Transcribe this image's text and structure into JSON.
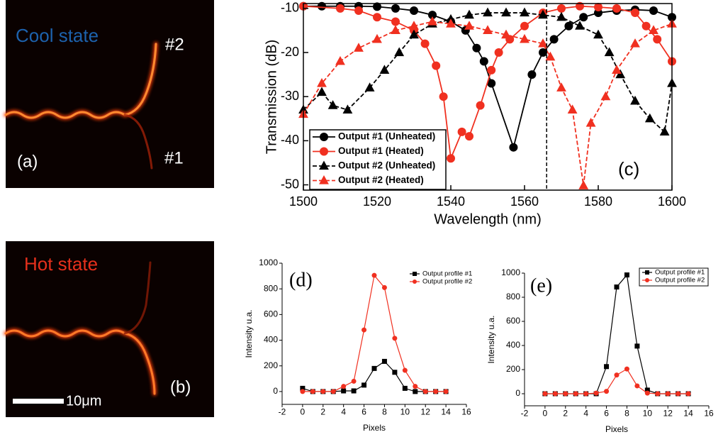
{
  "images": [
    {
      "state": "Cool state",
      "label": "(a)",
      "ports": [
        "#2",
        "#1"
      ]
    },
    {
      "state": "Hot state",
      "label": "(b)",
      "scale_bar": "10μm"
    }
  ],
  "chart_data": [
    {
      "type": "line",
      "annotation": "(c)",
      "x_label": "Wavelength (nm)",
      "y_label": "Transmission (dB)",
      "xlim": [
        1500,
        1600
      ],
      "xticks": [
        1500,
        1520,
        1540,
        1560,
        1580,
        1600
      ],
      "ylim": [
        -51.2,
        -8.9
      ],
      "yticks": [
        -50,
        -40,
        -30,
        -20,
        -10
      ],
      "vline": 1566,
      "series": [
        {
          "name": "Output #1 (Unheated)",
          "color": "#000000",
          "marker": "circle",
          "line_style": "solid",
          "x": [
            1500,
            1505,
            1510,
            1515,
            1520,
            1525,
            1530,
            1535,
            1540,
            1544,
            1547,
            1549,
            1551,
            1557,
            1562,
            1565,
            1568,
            1572,
            1576,
            1580,
            1585,
            1590,
            1595,
            1600
          ],
          "values": [
            -9.5,
            -9.5,
            -9.5,
            -9.5,
            -9.6,
            -10,
            -10.5,
            -11.5,
            -13,
            -15,
            -19,
            -22,
            -27,
            -41.5,
            -25,
            -20,
            -17,
            -14,
            -12,
            -11,
            -10.5,
            -10.3,
            -10.5,
            -12
          ]
        },
        {
          "name": "Output #1 (Heated)",
          "color": "#f03020",
          "marker": "circle",
          "line_style": "solid",
          "x": [
            1500,
            1510,
            1515,
            1520,
            1525,
            1530,
            1533,
            1536,
            1538,
            1540,
            1543,
            1545,
            1548,
            1551,
            1553,
            1556,
            1560,
            1565,
            1570,
            1575,
            1580,
            1585,
            1590,
            1593,
            1596,
            1600
          ],
          "values": [
            -9.5,
            -10,
            -10.5,
            -12,
            -13,
            -15,
            -18,
            -23,
            -30,
            -44,
            -38,
            -39,
            -32,
            -24,
            -20,
            -17,
            -14,
            -11,
            -10,
            -9.5,
            -9.7,
            -10,
            -11,
            -14,
            -17,
            -22
          ]
        },
        {
          "name": "Output #2 (Unheated)",
          "color": "#000000",
          "marker": "triangle",
          "line_style": "dashed",
          "x": [
            1500,
            1505,
            1508,
            1512,
            1518,
            1522,
            1526,
            1530,
            1535,
            1540,
            1545,
            1550,
            1555,
            1560,
            1565,
            1570,
            1575,
            1580,
            1583,
            1586,
            1590,
            1594,
            1598,
            1600
          ],
          "values": [
            -33,
            -29,
            -32,
            -33,
            -28,
            -24,
            -20,
            -16,
            -13.5,
            -12.5,
            -11.5,
            -11,
            -11,
            -11,
            -11.5,
            -12,
            -14,
            -16,
            -20,
            -25,
            -31,
            -35,
            -38,
            -27
          ]
        },
        {
          "name": "Output #2 (Heated)",
          "color": "#f03020",
          "marker": "triangle",
          "line_style": "dashed",
          "x": [
            1500,
            1505,
            1510,
            1515,
            1520,
            1525,
            1530,
            1535,
            1540,
            1545,
            1550,
            1555,
            1560,
            1565,
            1567,
            1570,
            1573,
            1576,
            1578,
            1582,
            1585,
            1590,
            1595,
            1600
          ],
          "values": [
            -34,
            -27,
            -22,
            -19,
            -17,
            -15,
            -14,
            -13,
            -13.5,
            -14,
            -15,
            -16,
            -17,
            -18,
            -21,
            -28,
            -33,
            -50.2,
            -36,
            -30,
            -24,
            -18,
            -15,
            -13.5
          ]
        }
      ]
    },
    {
      "type": "line",
      "annotation": "(d)",
      "x_label": "Pixels",
      "y_label": "Intensity u.a.",
      "xlim": [
        -2,
        16
      ],
      "xticks": [
        -2,
        0,
        2,
        4,
        6,
        8,
        10,
        12,
        14,
        16
      ],
      "ylim": [
        -100,
        1000
      ],
      "yticks": [
        0,
        200,
        400,
        600,
        800,
        1000
      ],
      "x": [
        0,
        1,
        2,
        3,
        4,
        5,
        6,
        7,
        8,
        9,
        10,
        11,
        12,
        13,
        14
      ],
      "series": [
        {
          "name": "Output profile #1",
          "color": "#000000",
          "marker": "square",
          "line_style": "solid",
          "values": [
            25,
            0,
            0,
            0,
            5,
            5,
            50,
            180,
            235,
            150,
            25,
            0,
            0,
            0,
            0
          ]
        },
        {
          "name": "Output profile #2",
          "color": "#f03020",
          "marker": "circle",
          "line_style": "solid",
          "values": [
            0,
            0,
            0,
            0,
            40,
            80,
            480,
            905,
            810,
            415,
            165,
            40,
            0,
            0,
            0
          ]
        }
      ]
    },
    {
      "type": "line",
      "annotation": "(e)",
      "x_label": "Pixels",
      "y_label": "Intensity u.a.",
      "xlim": [
        -2,
        16
      ],
      "xticks": [
        -2,
        0,
        2,
        4,
        6,
        8,
        10,
        12,
        14,
        16
      ],
      "ylim": [
        -100,
        1000
      ],
      "yticks": [
        0,
        200,
        400,
        600,
        800,
        1000
      ],
      "x": [
        0,
        1,
        2,
        3,
        4,
        5,
        6,
        7,
        8,
        9,
        10,
        11,
        12,
        13,
        14
      ],
      "series": [
        {
          "name": "Output profile #1",
          "color": "#000000",
          "marker": "square",
          "line_style": "solid",
          "values": [
            0,
            0,
            0,
            0,
            0,
            0,
            225,
            885,
            985,
            395,
            30,
            0,
            0,
            0,
            0
          ]
        },
        {
          "name": "Output profile #2",
          "color": "#f03020",
          "marker": "circle",
          "line_style": "solid",
          "values": [
            0,
            0,
            0,
            0,
            0,
            5,
            20,
            155,
            205,
            65,
            5,
            0,
            0,
            0,
            0
          ]
        }
      ]
    }
  ]
}
